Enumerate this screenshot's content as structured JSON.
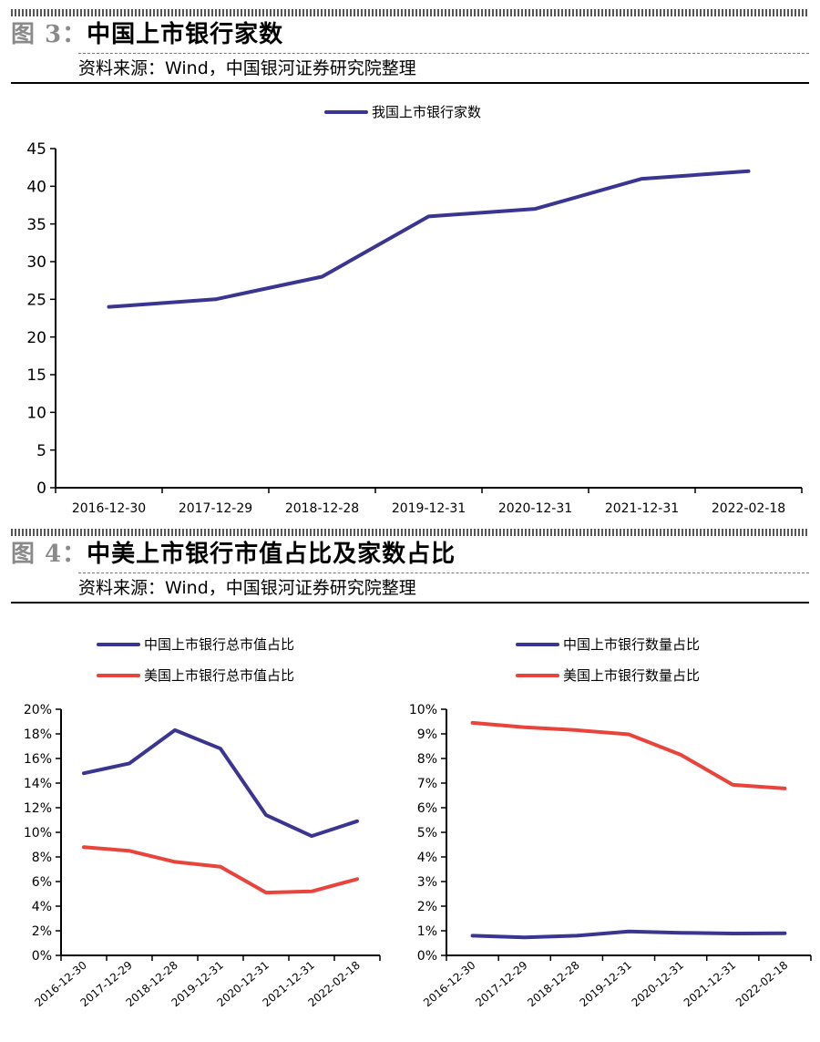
{
  "figure3": {
    "label": "图 3：",
    "title": "中国上市银行家数",
    "source": "资料来源：Wind，中国银河证券研究院整理"
  },
  "figure4": {
    "label": "图 4：",
    "title": "中美上市银行市值占比及家数占比",
    "source": "资料来源：Wind，中国银河证券研究院整理"
  },
  "colors": {
    "blue": "#3b3592",
    "red": "#e8443b"
  },
  "chart_data": [
    {
      "type": "line",
      "x": [
        "2016-12-30",
        "2017-12-29",
        "2018-12-28",
        "2019-12-31",
        "2020-12-31",
        "2021-12-31",
        "2022-02-18"
      ],
      "series": [
        {
          "name": "我国上市银行家数",
          "values": [
            24,
            25,
            28,
            36,
            37,
            41,
            42
          ],
          "color": "#3b3592"
        }
      ],
      "ylim": [
        0,
        45
      ],
      "yticks": [
        "0",
        "5",
        "10",
        "15",
        "20",
        "25",
        "30",
        "35",
        "40",
        "45"
      ],
      "legend": "top-center",
      "grid": false
    },
    {
      "type": "line",
      "x": [
        "2016-12-30",
        "2017-12-29",
        "2018-12-28",
        "2019-12-31",
        "2020-12-31",
        "2021-12-31",
        "2022-02-18"
      ],
      "series": [
        {
          "name": "中国上市银行总市值占比",
          "values": [
            14.8,
            15.6,
            18.3,
            16.8,
            11.4,
            9.7,
            10.9
          ],
          "color": "#3b3592"
        },
        {
          "name": "美国上市银行总市值占比",
          "values": [
            8.8,
            8.5,
            7.6,
            7.2,
            5.1,
            5.2,
            6.2
          ],
          "color": "#e8443b"
        }
      ],
      "ylim": [
        0,
        20
      ],
      "yticks": [
        "0%",
        "2%",
        "4%",
        "6%",
        "8%",
        "10%",
        "12%",
        "14%",
        "16%",
        "18%",
        "20%"
      ],
      "legend": "top",
      "grid": false
    },
    {
      "type": "line",
      "x": [
        "2016-12-30",
        "2017-12-29",
        "2018-12-28",
        "2019-12-31",
        "2020-12-31",
        "2021-12-31",
        "2022-02-18"
      ],
      "series": [
        {
          "name": "中国上市银行数量占比",
          "values": [
            0.8,
            0.73,
            0.8,
            0.97,
            0.92,
            0.89,
            0.9
          ],
          "color": "#3b3592"
        },
        {
          "name": "美国上市银行数量占比",
          "values": [
            9.45,
            9.27,
            9.15,
            8.98,
            8.15,
            6.93,
            6.78
          ],
          "color": "#e8443b"
        }
      ],
      "ylim": [
        0,
        10
      ],
      "yticks": [
        "0%",
        "1%",
        "2%",
        "3%",
        "4%",
        "5%",
        "6%",
        "7%",
        "8%",
        "9%",
        "10%"
      ],
      "legend": "top",
      "grid": false
    }
  ]
}
